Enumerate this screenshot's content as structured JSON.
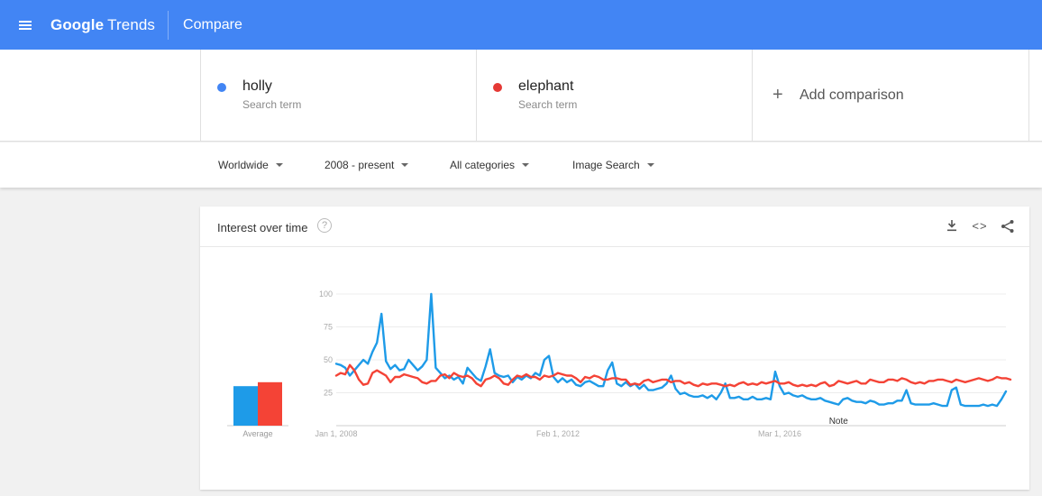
{
  "header": {
    "logo_brand": "Google",
    "logo_product": "Trends",
    "page_title": "Compare"
  },
  "terms": [
    {
      "name": "holly",
      "sub": "Search term",
      "color": "#4285f4"
    },
    {
      "name": "elephant",
      "sub": "Search term",
      "color": "#e53935"
    }
  ],
  "add_comparison": "Add comparison",
  "filters": {
    "region": "Worldwide",
    "time": "2008 - present",
    "category": "All categories",
    "property": "Image Search"
  },
  "card": {
    "title": "Interest over time",
    "help": "?"
  },
  "chart_data": {
    "type": "line",
    "y_ticks": [
      25,
      50,
      75,
      100
    ],
    "ylim": [
      0,
      100
    ],
    "x_ticks": [
      "Jan 1, 2008",
      "Feb 1, 2012",
      "Mar 1, 2016"
    ],
    "x_tick_pos": [
      0,
      49,
      98
    ],
    "note_label": "Note",
    "note_pos": 111,
    "average_label": "Average",
    "series": [
      {
        "name": "holly",
        "color": "#1e9be8",
        "average": 30,
        "values": [
          47,
          46,
          44,
          38,
          42,
          46,
          50,
          47,
          56,
          63,
          85,
          49,
          43,
          46,
          42,
          43,
          50,
          46,
          42,
          45,
          50,
          100,
          44,
          40,
          36,
          38,
          35,
          37,
          32,
          44,
          40,
          36,
          34,
          45,
          58,
          40,
          38,
          37,
          38,
          33,
          37,
          35,
          38,
          36,
          40,
          38,
          50,
          53,
          37,
          33,
          36,
          33,
          35,
          31,
          30,
          33,
          34,
          32,
          30,
          30,
          42,
          48,
          32,
          30,
          33,
          30,
          32,
          28,
          31,
          27,
          27,
          28,
          29,
          32,
          38,
          28,
          24,
          25,
          23,
          22,
          22,
          23,
          21,
          23,
          20,
          25,
          32,
          21,
          21,
          22,
          20,
          20,
          22,
          20,
          20,
          21,
          20,
          41,
          30,
          24,
          25,
          23,
          22,
          23,
          21,
          20,
          20,
          21,
          19,
          18,
          17,
          16,
          20,
          21,
          19,
          18,
          18,
          17,
          19,
          18,
          16,
          16,
          17,
          17,
          19,
          19,
          27,
          17,
          16,
          16,
          16,
          16,
          17,
          16,
          15,
          15,
          27,
          29,
          16,
          15,
          15,
          15,
          15,
          16,
          15,
          16,
          15,
          20,
          26
        ]
      },
      {
        "name": "elephant",
        "color": "#f44336",
        "average": 33,
        "values": [
          38,
          40,
          39,
          46,
          42,
          35,
          31,
          32,
          40,
          42,
          40,
          38,
          33,
          37,
          37,
          39,
          38,
          37,
          36,
          33,
          32,
          34,
          34,
          38,
          39,
          36,
          40,
          38,
          37,
          38,
          36,
          32,
          30,
          35,
          36,
          38,
          36,
          32,
          31,
          35,
          38,
          37,
          39,
          37,
          37,
          35,
          38,
          37,
          38,
          40,
          39,
          38,
          38,
          36,
          33,
          37,
          36,
          38,
          37,
          35,
          35,
          36,
          36,
          35,
          35,
          31,
          32,
          31,
          34,
          35,
          33,
          34,
          35,
          35,
          33,
          34,
          34,
          32,
          33,
          31,
          30,
          32,
          31,
          32,
          32,
          31,
          30,
          31,
          30,
          32,
          33,
          31,
          32,
          31,
          33,
          32,
          33,
          34,
          32,
          32,
          33,
          31,
          30,
          31,
          30,
          31,
          30,
          32,
          33,
          30,
          31,
          34,
          33,
          32,
          33,
          34,
          32,
          32,
          35,
          34,
          33,
          33,
          35,
          35,
          34,
          36,
          35,
          33,
          32,
          33,
          32,
          34,
          34,
          35,
          35,
          34,
          33,
          35,
          34,
          33,
          34,
          35,
          36,
          35,
          34,
          35,
          37,
          36,
          36,
          35
        ]
      }
    ]
  }
}
